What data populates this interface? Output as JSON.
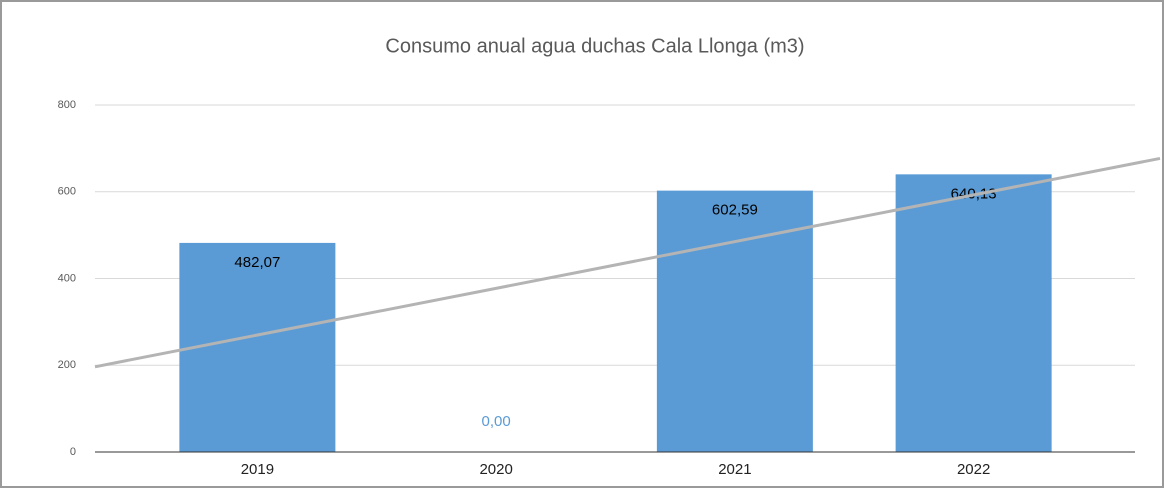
{
  "chart_data": {
    "type": "bar",
    "title": "Consumo anual agua duchas Cala Llonga (m3)",
    "categories": [
      "2019",
      "2020",
      "2021",
      "2022"
    ],
    "values": [
      482.07,
      0,
      602.59,
      640.13
    ],
    "value_labels": [
      "482,07",
      "0,00",
      "602,59",
      "640,13"
    ],
    "color": "#5b9bd5",
    "trendline": true,
    "trendline_color": "#b4b4b4",
    "ylim": [
      0,
      800
    ],
    "yticks": [
      0,
      200,
      400,
      600,
      800
    ],
    "grid": true
  }
}
